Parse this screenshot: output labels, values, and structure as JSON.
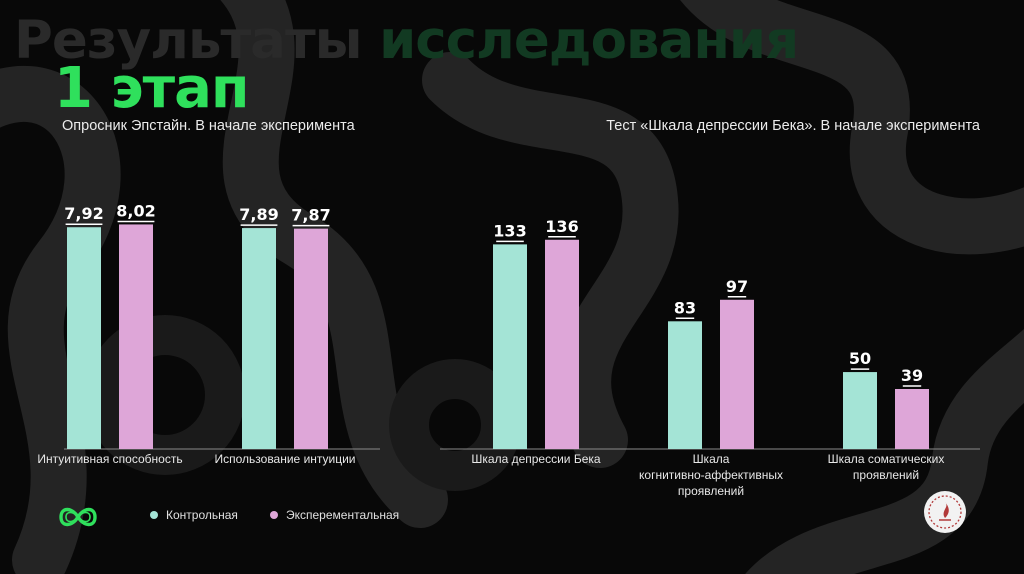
{
  "header": {
    "title_part1": "Результаты",
    "title_part2": "исследования",
    "stage": "1 этап"
  },
  "colors": {
    "control": "#a4e4d6",
    "experimental": "#dea6d8",
    "accent": "#2fe05c"
  },
  "icons": {
    "left_logo": "infinity-logo-icon",
    "right_logo": "round-emblem-icon"
  },
  "legend": {
    "control": "Контрольная",
    "experimental": "Эксперементальная"
  },
  "chart_data": [
    {
      "type": "bar",
      "title": "Опросник Эпстайн. В начале эксперимента",
      "categories": [
        "Интуитивная способность",
        "Использование интуиции"
      ],
      "series": [
        {
          "name": "Контрольная",
          "values": [
            7.92,
            7.89
          ],
          "labels": [
            "7,92",
            "7,89"
          ]
        },
        {
          "name": "Эксперементальная",
          "values": [
            8.02,
            7.87
          ],
          "labels": [
            "8,02",
            "7,87"
          ]
        }
      ],
      "ylim": [
        0,
        10
      ]
    },
    {
      "type": "bar",
      "title": "Тест «Шкала депрессии Бека». В начале эксперимента",
      "categories": [
        "Шкала депрессии Бека",
        "Шкала когнитивно-аффективных проявлений",
        "Шкала соматических проявлений"
      ],
      "series": [
        {
          "name": "Контрольная",
          "values": [
            133,
            83,
            50
          ],
          "labels": [
            "133",
            "83",
            "50"
          ]
        },
        {
          "name": "Эксперементальная",
          "values": [
            136,
            97,
            39
          ],
          "labels": [
            "136",
            "97",
            "39"
          ]
        }
      ],
      "ylim": [
        0,
        182
      ]
    }
  ]
}
